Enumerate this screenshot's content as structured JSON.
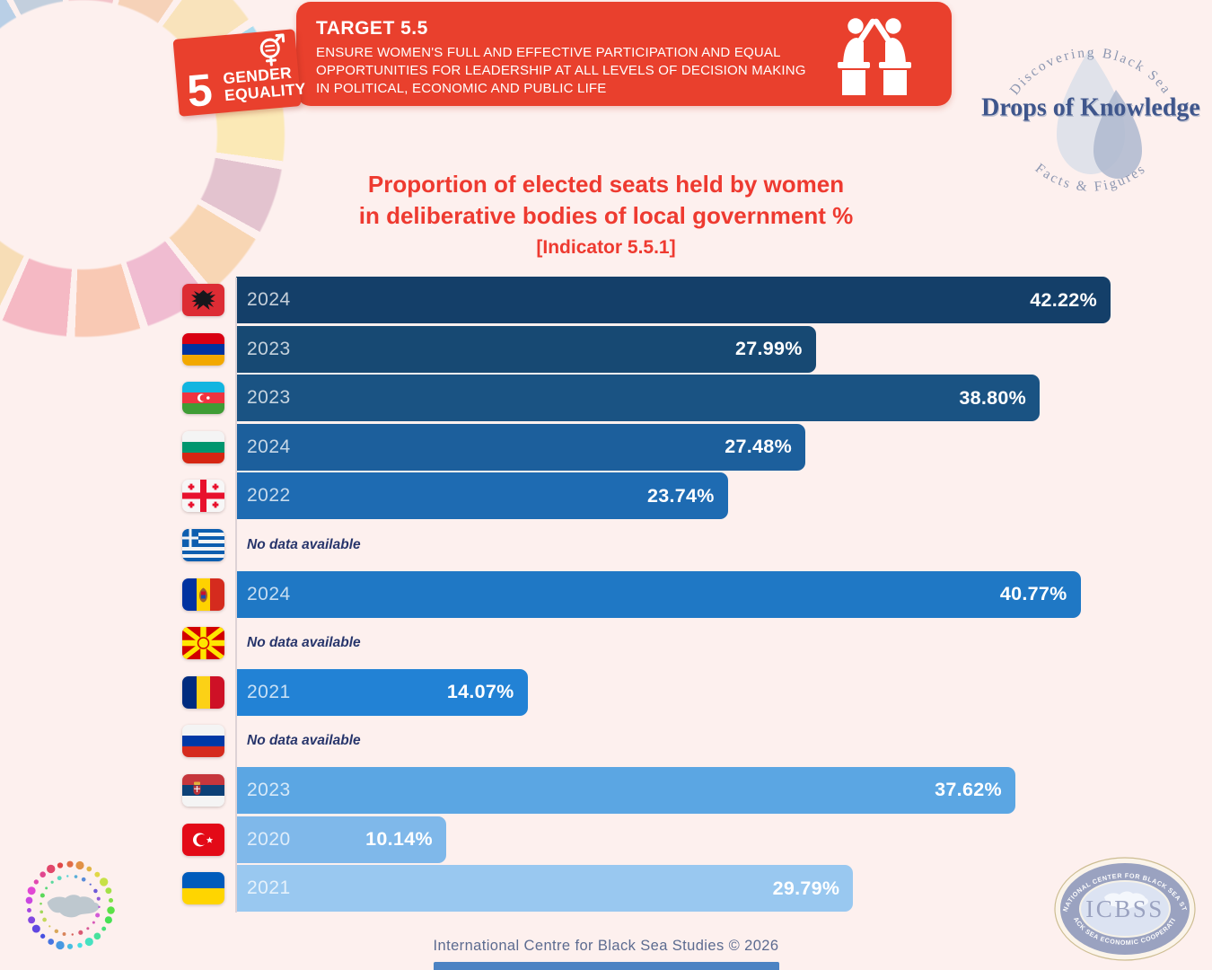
{
  "sdg_badge": {
    "goal_number": "5",
    "label_line1": "GENDER",
    "label_line2": "EQUALITY",
    "color": "#e9402d"
  },
  "target_banner": {
    "title": "TARGET 5.5",
    "description_lines": [
      "ENSURE WOMEN'S FULL AND EFFECTIVE PARTICIPATION AND EQUAL",
      "OPPORTUNITIES FOR LEADERSHIP AT ALL LEVELS OF DECISION MAKING",
      "IN POLITICAL, ECONOMIC AND PUBLIC LIFE"
    ],
    "color": "#e9402d"
  },
  "brand_logo": {
    "arc_top": "Discovering Black Sea",
    "name": "Drops of Knowledge",
    "arc_bottom": "Facts & Figures"
  },
  "chart_title": {
    "line1": "Proportion of elected seats held by women",
    "line2": "in deliberative bodies of local government %",
    "line3": "[Indicator 5.5.1]",
    "color": "#ee3a30"
  },
  "chart_data": {
    "type": "bar",
    "orientation": "horizontal",
    "unit": "%",
    "xlim": [
      0,
      42.22
    ],
    "no_data_label": "No data available",
    "rows": [
      {
        "country": "Albania",
        "year": "2024",
        "value": 42.22,
        "value_label": "42.22%",
        "color": "#143f69"
      },
      {
        "country": "Armenia",
        "year": "2023",
        "value": 27.99,
        "value_label": "27.99%",
        "color": "#174973"
      },
      {
        "country": "Azerbaijan",
        "year": "2023",
        "value": 38.8,
        "value_label": "38.80%",
        "color": "#1a5383"
      },
      {
        "country": "Bulgaria",
        "year": "2024",
        "value": 27.48,
        "value_label": "27.48%",
        "color": "#1c5f9c"
      },
      {
        "country": "Georgia",
        "year": "2022",
        "value": 23.74,
        "value_label": "23.74%",
        "color": "#1e6bb2"
      },
      {
        "country": "Greece",
        "year": null,
        "value": null,
        "no_data": true
      },
      {
        "country": "Moldova",
        "year": "2024",
        "value": 40.77,
        "value_label": "40.77%",
        "color": "#1f78c5"
      },
      {
        "country": "North Macedonia",
        "year": null,
        "value": null,
        "no_data": true
      },
      {
        "country": "Romania",
        "year": "2021",
        "value": 14.07,
        "value_label": "14.07%",
        "color": "#2282d5"
      },
      {
        "country": "Russia",
        "year": null,
        "value": null,
        "no_data": true
      },
      {
        "country": "Serbia",
        "year": "2023",
        "value": 37.62,
        "value_label": "37.62%",
        "color": "#5ba6e3"
      },
      {
        "country": "Turkey",
        "year": "2020",
        "value": 10.14,
        "value_label": "10.14%",
        "color": "#7fb8ea"
      },
      {
        "country": "Ukraine",
        "year": "2021",
        "value": 29.79,
        "value_label": "29.79%",
        "color": "#99c8f0"
      }
    ]
  },
  "icbss_logo": {
    "arc_top": "INTERNATIONAL CENTER FOR BLACK SEA STUDIES",
    "acronym": "ICBSS",
    "arc_bottom": "BLACK SEA ECONOMIC COOPERATION"
  },
  "footer": {
    "credit": "International Centre for Black Sea Studies © 2026"
  }
}
